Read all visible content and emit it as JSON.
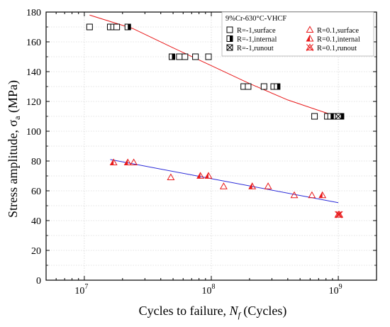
{
  "chart_data": {
    "type": "scatter",
    "title": "",
    "xlabel_main": "Cycles to failure, ",
    "xlabel_italic": "N",
    "xlabel_sub": "f",
    "xlabel_unit": " (Cycles)",
    "ylabel_main": "Stress amplitude, σ",
    "ylabel_sub": "a",
    "ylabel_unit": " (MPa)",
    "xscale": "log",
    "xlim": [
      5000000,
      2000000000
    ],
    "ylim": [
      0,
      180
    ],
    "x_ticks": [
      {
        "value": 10000000,
        "base": "10",
        "exp": "7"
      },
      {
        "value": 100000000,
        "base": "10",
        "exp": "8"
      },
      {
        "value": 1000000000,
        "base": "10",
        "exp": "9"
      }
    ],
    "y_ticks": [
      "0",
      "20",
      "40",
      "60",
      "80",
      "100",
      "120",
      "140",
      "160",
      "180"
    ],
    "grid": true,
    "legend_title": "9%Cr-630°C-VHCF",
    "legend_placement": "top-right",
    "series": [
      {
        "name": "R=-1,surface",
        "marker": "square-open",
        "color": "#000000",
        "points": [
          [
            11000000,
            170
          ],
          [
            16000000,
            170
          ],
          [
            17000000,
            170
          ],
          [
            18000000,
            170
          ],
          [
            56000000,
            150
          ],
          [
            62000000,
            150
          ],
          [
            75000000,
            150
          ],
          [
            95000000,
            150
          ],
          [
            180000000,
            130
          ],
          [
            195000000,
            130
          ],
          [
            260000000,
            130
          ],
          [
            310000000,
            130
          ],
          [
            650000000,
            110
          ],
          [
            820000000,
            110
          ],
          [
            950000000,
            110
          ]
        ]
      },
      {
        "name": "R=-1,internal",
        "marker": "square-half",
        "color": "#000000",
        "points": [
          [
            22000000,
            170
          ],
          [
            49000000,
            150
          ],
          [
            330000000,
            130
          ],
          [
            870000000,
            110
          ],
          [
            1050000000,
            110
          ]
        ]
      },
      {
        "name": "R=-1,runout",
        "marker": "square-x",
        "color": "#000000",
        "points": [
          [
            1000000000,
            110
          ]
        ]
      },
      {
        "name": "R=0.1,surface",
        "marker": "triangle-open",
        "color": "#e8191a",
        "points": [
          [
            24500000,
            79
          ],
          [
            48000000,
            69
          ],
          [
            125000000,
            63
          ],
          [
            280000000,
            63
          ],
          [
            450000000,
            57
          ],
          [
            620000000,
            57
          ]
        ]
      },
      {
        "name": "R=0.1,internal",
        "marker": "triangle-half",
        "color": "#e8191a",
        "points": [
          [
            17000000,
            79
          ],
          [
            22000000,
            79
          ],
          [
            82000000,
            70
          ],
          [
            95000000,
            70
          ],
          [
            210000000,
            63
          ],
          [
            750000000,
            57
          ]
        ]
      },
      {
        "name": "R=0.1,runout",
        "marker": "triangle-x",
        "color": "#e8191a",
        "points": [
          [
            1000000000,
            44
          ],
          [
            1020000000,
            44
          ]
        ]
      }
    ],
    "fit_lines": [
      {
        "color": "#e8191a",
        "points": [
          [
            11000000,
            178
          ],
          [
            24000000,
            169
          ],
          [
            50000000,
            156
          ],
          [
            100000000,
            144
          ],
          [
            200000000,
            132
          ],
          [
            400000000,
            121
          ],
          [
            700000000,
            114
          ],
          [
            1050000000,
            109
          ]
        ]
      },
      {
        "color": "#2a2ad8",
        "points": [
          [
            16000000,
            81
          ],
          [
            1000000000,
            52
          ]
        ]
      }
    ]
  }
}
